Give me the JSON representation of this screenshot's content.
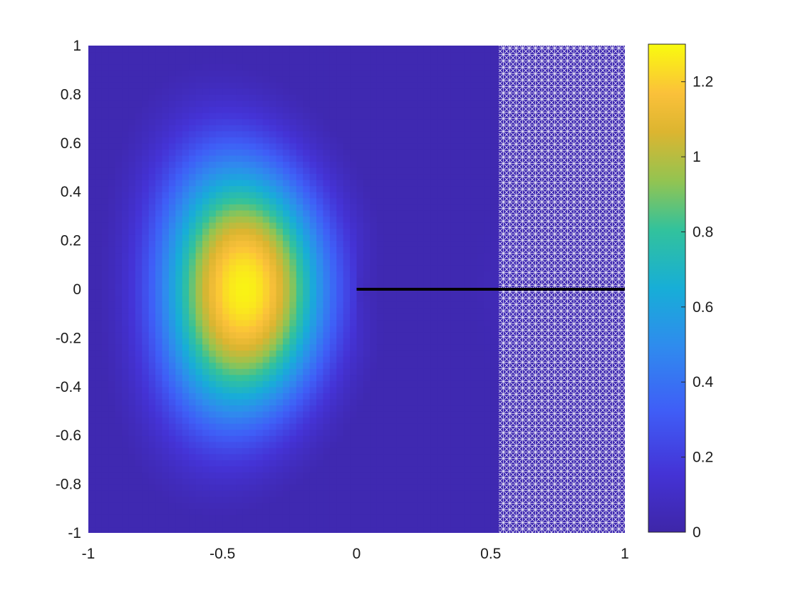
{
  "chart_data": {
    "type": "heatmap",
    "title": "",
    "xlabel": "",
    "ylabel": "",
    "xlim": [
      -1,
      1
    ],
    "ylim": [
      -1,
      1
    ],
    "x_ticks": [
      -1,
      -0.5,
      0,
      0.5,
      1
    ],
    "x_tick_labels": [
      "-1",
      "-0.5",
      "0",
      "0.5",
      "1"
    ],
    "y_ticks": [
      1,
      0.8,
      0.6,
      0.4,
      0.2,
      0,
      -0.2,
      -0.4,
      -0.6,
      -0.8,
      -1
    ],
    "y_tick_labels": [
      "1",
      "0.8",
      "0.6",
      "0.4",
      "0.2",
      "0",
      "-0.2",
      "-0.4",
      "-0.6",
      "-0.8",
      "-1"
    ],
    "colormap": "parula",
    "grid": false,
    "colorbar": {
      "clim": [
        0,
        1.3
      ],
      "ticks": [
        0,
        0.2,
        0.4,
        0.6,
        0.8,
        1,
        1.2
      ],
      "tick_labels": [
        "0",
        "0.2",
        "0.4",
        "0.6",
        "0.8",
        "1",
        "1.2"
      ]
    },
    "field": {
      "description_peak": {
        "x": -0.42,
        "y": 0.0,
        "value": 1.28
      },
      "crack_segment": {
        "x": [
          0,
          1
        ],
        "y": [
          0,
          0
        ],
        "color": "#000000"
      }
    },
    "colors": {
      "parula_low": "#3e26a8",
      "parula_mid": "#17beb8",
      "parula_high": "#f9fb0e",
      "mesh_marker": "#ffffff",
      "crack": "#000000"
    }
  }
}
